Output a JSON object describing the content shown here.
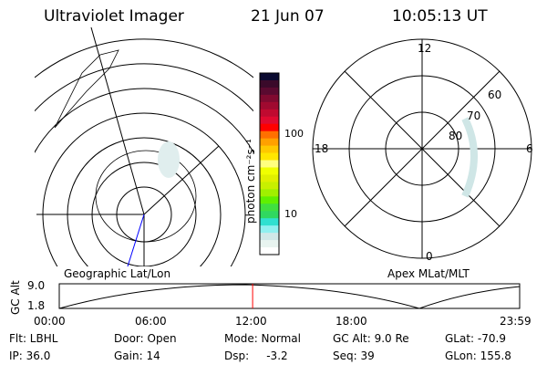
{
  "header": {
    "title": "Ultraviolet Imager",
    "date": "21 Jun 07",
    "time": "10:05:13 UT"
  },
  "colorbar": {
    "label": "photon cm⁻²s⁻¹",
    "ticks": [
      "100",
      "10"
    ],
    "colors": [
      "#0a0a30",
      "#3a0a2a",
      "#5a0a30",
      "#800a30",
      "#a00a30",
      "#c00a30",
      "#e00a30",
      "#ff0000",
      "#ff7000",
      "#ffa000",
      "#ffc800",
      "#ffe600",
      "#ffff80",
      "#f0ff00",
      "#e0f000",
      "#c8f000",
      "#a0f000",
      "#60f000",
      "#40e040",
      "#30d860",
      "#30e0d0",
      "#90f0f0",
      "#d0e8e8",
      "#e8f4f0",
      "#ffffff"
    ]
  },
  "polar": {
    "labels": {
      "top": "12",
      "left": "18",
      "right": "6",
      "bottom": "0"
    },
    "lat_labels": [
      "60",
      "70",
      "80"
    ]
  },
  "left_plot_label": "Geographic Lat/Lon",
  "right_plot_label": "Apex MLat/MLT",
  "altplot": {
    "ylabel": "GC Alt",
    "yticks": [
      "9.0",
      "1.8"
    ],
    "xticks": [
      "00:00",
      "06:00",
      "12:00",
      "18:00",
      "23:59"
    ],
    "current_time_fraction": 0.42,
    "marker_color": "#ff0000"
  },
  "status": {
    "flt": "Flt: LBHL",
    "ip": "IP: 36.0",
    "door": "Door: Open",
    "gain": "Gain: 14",
    "mode": "Mode: Normal",
    "dsp": "Dsp:     -3.2",
    "gcalt": "GC Alt: 9.0 Re",
    "seq": "Seq: 39",
    "glat": "GLat: -70.9",
    "glon": "GLon: 155.8"
  }
}
